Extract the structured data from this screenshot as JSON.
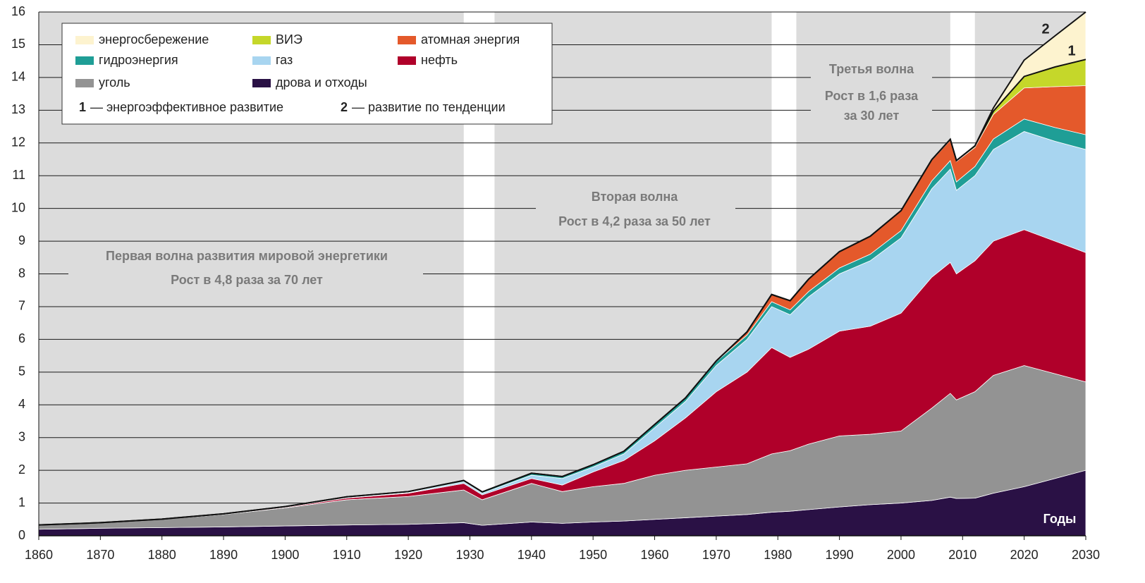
{
  "chart_data": {
    "type": "stacked_area",
    "x_label": "Годы",
    "x": [
      1860,
      1870,
      1880,
      1890,
      1900,
      1910,
      1920,
      1929,
      1932,
      1940,
      1945,
      1950,
      1955,
      1960,
      1965,
      1970,
      1975,
      1979,
      1982,
      1985,
      1990,
      1995,
      2000,
      2005,
      2008,
      2009,
      2012,
      2015,
      2020,
      2025,
      2030
    ],
    "series": [
      {
        "name": "дрова и отходы",
        "color": "#2a1145",
        "values": [
          0.2,
          0.23,
          0.25,
          0.27,
          0.3,
          0.33,
          0.35,
          0.4,
          0.32,
          0.42,
          0.38,
          0.42,
          0.45,
          0.5,
          0.55,
          0.6,
          0.65,
          0.72,
          0.75,
          0.8,
          0.88,
          0.95,
          1.0,
          1.08,
          1.18,
          1.14,
          1.15,
          1.3,
          1.5,
          1.75,
          2.0
        ]
      },
      {
        "name": "уголь",
        "color": "#939393",
        "values": [
          0.13,
          0.17,
          0.25,
          0.38,
          0.55,
          0.77,
          0.85,
          1.0,
          0.78,
          1.18,
          0.97,
          1.08,
          1.15,
          1.35,
          1.45,
          1.5,
          1.55,
          1.78,
          1.85,
          2.0,
          2.17,
          2.15,
          2.2,
          2.82,
          3.17,
          3.01,
          3.25,
          3.6,
          3.7,
          3.2,
          2.7
        ]
      },
      {
        "name": "нефть",
        "color": "#b0002a",
        "values": [
          0,
          0,
          0.01,
          0.02,
          0.02,
          0.05,
          0.1,
          0.2,
          0.15,
          0.15,
          0.2,
          0.45,
          0.7,
          1.05,
          1.6,
          2.3,
          2.8,
          3.25,
          2.85,
          2.9,
          3.2,
          3.3,
          3.6,
          4.0,
          4.0,
          3.85,
          4.0,
          4.1,
          4.15,
          4.05,
          3.95
        ]
      },
      {
        "name": "газ",
        "color": "#a8d5f0",
        "values": [
          0,
          0,
          0,
          0,
          0.01,
          0.02,
          0.02,
          0.05,
          0.05,
          0.1,
          0.2,
          0.15,
          0.2,
          0.4,
          0.5,
          0.8,
          1.0,
          1.25,
          1.3,
          1.6,
          1.75,
          2.0,
          2.3,
          2.7,
          2.85,
          2.55,
          2.6,
          2.8,
          3.0,
          3.05,
          3.15
        ]
      },
      {
        "name": "гидроэнергия",
        "color": "#1f9e96",
        "values": [
          0,
          0,
          0,
          0,
          0.01,
          0.02,
          0.03,
          0.04,
          0.04,
          0.06,
          0.06,
          0.07,
          0.08,
          0.1,
          0.11,
          0.12,
          0.13,
          0.15,
          0.15,
          0.16,
          0.18,
          0.2,
          0.22,
          0.24,
          0.26,
          0.26,
          0.28,
          0.32,
          0.38,
          0.42,
          0.45
        ]
      },
      {
        "name": "атомная энергия",
        "color": "#e4592b",
        "values": [
          0,
          0,
          0,
          0,
          0,
          0,
          0,
          0,
          0,
          0,
          0,
          0,
          0,
          0,
          0,
          0.02,
          0.1,
          0.22,
          0.28,
          0.38,
          0.5,
          0.55,
          0.6,
          0.63,
          0.62,
          0.62,
          0.58,
          0.75,
          0.95,
          1.25,
          1.5
        ]
      },
      {
        "name": "ВИЭ",
        "color": "#c5d72a",
        "values": [
          0,
          0,
          0,
          0,
          0,
          0,
          0,
          0,
          0,
          0,
          0,
          0,
          0,
          0,
          0,
          0,
          0,
          0,
          0,
          0,
          0,
          0,
          0.01,
          0.02,
          0.03,
          0.03,
          0.05,
          0.1,
          0.35,
          0.6,
          0.8
        ]
      },
      {
        "name": "энергосбережение",
        "color": "#fdf3cf",
        "values": [
          0,
          0,
          0,
          0,
          0,
          0,
          0,
          0,
          0,
          0,
          0,
          0,
          0,
          0,
          0,
          0,
          0,
          0,
          0,
          0,
          0,
          0,
          0,
          0,
          0,
          0,
          0,
          0.1,
          0.5,
          0.95,
          1.45
        ]
      }
    ],
    "legend_notes": [
      {
        "key": "1",
        "label": "— энергоэффективное развитие"
      },
      {
        "key": "2",
        "label": "— развитие по тенденции"
      }
    ],
    "annotations": [
      {
        "lines": [
          "Первая волна развития мировой энергетики",
          "Рост в 4,8 раза за 70 лет"
        ]
      },
      {
        "lines": [
          "Вторая волна",
          "Рост в 4,2 раза за 50 лет"
        ]
      },
      {
        "lines": [
          "Третья волна",
          "Рост в 1,6 раза",
          "за 30 лет"
        ]
      }
    ],
    "shaded_periods": [
      [
        1860,
        1929
      ],
      [
        1934,
        1979
      ],
      [
        1983,
        2008
      ],
      [
        2012,
        2030
      ]
    ],
    "shade_color": "#dcdcdc",
    "xlim": [
      1860,
      2030
    ],
    "xticks": [
      1860,
      1870,
      1880,
      1890,
      1900,
      1910,
      1920,
      1930,
      1940,
      1950,
      1960,
      1970,
      1980,
      1990,
      2000,
      2010,
      2020,
      2030
    ],
    "ylim": [
      0,
      16
    ],
    "yticks": [
      0,
      1,
      2,
      3,
      4,
      5,
      6,
      7,
      8,
      9,
      10,
      11,
      12,
      13,
      14,
      15,
      16
    ],
    "grid": true
  }
}
